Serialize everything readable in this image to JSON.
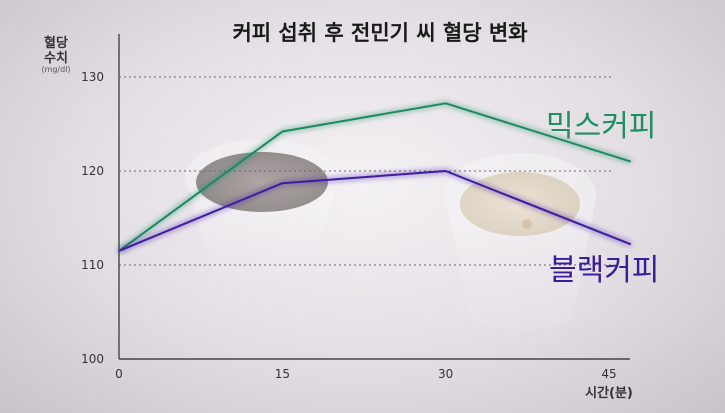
{
  "chart_data": {
    "type": "line",
    "title": "커피 섭취 후 전민기 씨 혈당 변화",
    "ylabel_line1": "혈당",
    "ylabel_line2": "수치",
    "yunit": "(mg/dl)",
    "xlabel": "시간(분)",
    "x": [
      0,
      15,
      30,
      45
    ],
    "xlim": [
      0,
      47
    ],
    "ylim": [
      100,
      135
    ],
    "yticks": [
      100,
      110,
      120,
      130
    ],
    "grid": "horizontal dotted at 110, 120, 130",
    "series": [
      {
        "name": "믹스커피",
        "color": "#1f8a60",
        "labelColor": "#1f8e62",
        "points": [
          [
            0,
            111.5
          ],
          [
            15,
            124.2
          ],
          [
            30,
            127.2
          ],
          [
            47,
            121.0
          ]
        ]
      },
      {
        "name": "블랙커피",
        "color": "#3f1ca0",
        "labelColor": "#3a1c9a",
        "points": [
          [
            0,
            111.5
          ],
          [
            15,
            118.7
          ],
          [
            30,
            120.0
          ],
          [
            47,
            112.2
          ]
        ]
      }
    ]
  }
}
